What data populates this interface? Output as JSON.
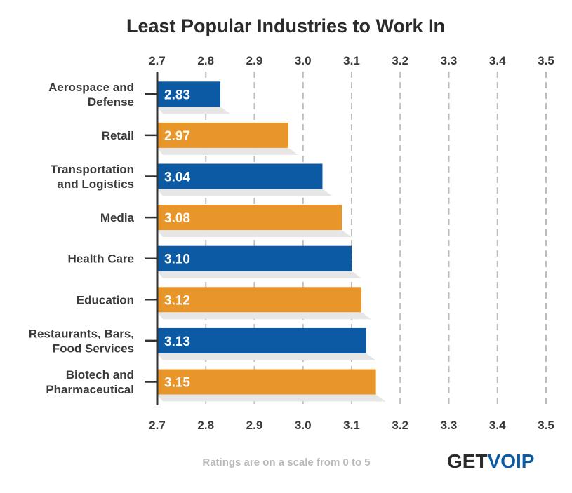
{
  "chart_data": {
    "type": "bar",
    "orientation": "horizontal",
    "title": "Least Popular Industries to Work In",
    "categories": [
      [
        "Aerospace and",
        "Defense"
      ],
      [
        "Retail"
      ],
      [
        "Transportation",
        "and Logistics"
      ],
      [
        "Media"
      ],
      [
        "Health Care"
      ],
      [
        "Education"
      ],
      [
        "Restaurants, Bars,",
        "Food Services"
      ],
      [
        "Biotech and",
        "Pharmaceutical"
      ]
    ],
    "values": [
      2.83,
      2.97,
      3.04,
      3.08,
      3.1,
      3.12,
      3.13,
      3.15
    ],
    "value_labels": [
      "2.83",
      "2.97",
      "3.04",
      "3.08",
      "3.10",
      "3.12",
      "3.13",
      "3.15"
    ],
    "bar_colors": [
      "#0b5aa3",
      "#e8952a",
      "#0b5aa3",
      "#e8952a",
      "#0b5aa3",
      "#e8952a",
      "#0b5aa3",
      "#e8952a"
    ],
    "xlim": [
      2.7,
      3.5
    ],
    "ticks": [
      2.7,
      2.8,
      2.9,
      3.0,
      3.1,
      3.2,
      3.3,
      3.4,
      3.5
    ],
    "tick_labels": [
      "2.7",
      "2.8",
      "2.9",
      "3.0",
      "3.1",
      "3.2",
      "3.3",
      "3.4",
      "3.5"
    ],
    "grid": "dashed vertical",
    "xlabel": "",
    "ylabel": ""
  },
  "footnote": "Ratings are on a scale from 0 to 5",
  "logo": {
    "part1": "GET",
    "part2": "VOIP",
    "color1": "#2b2b2b",
    "color2": "#0b5aa3"
  }
}
